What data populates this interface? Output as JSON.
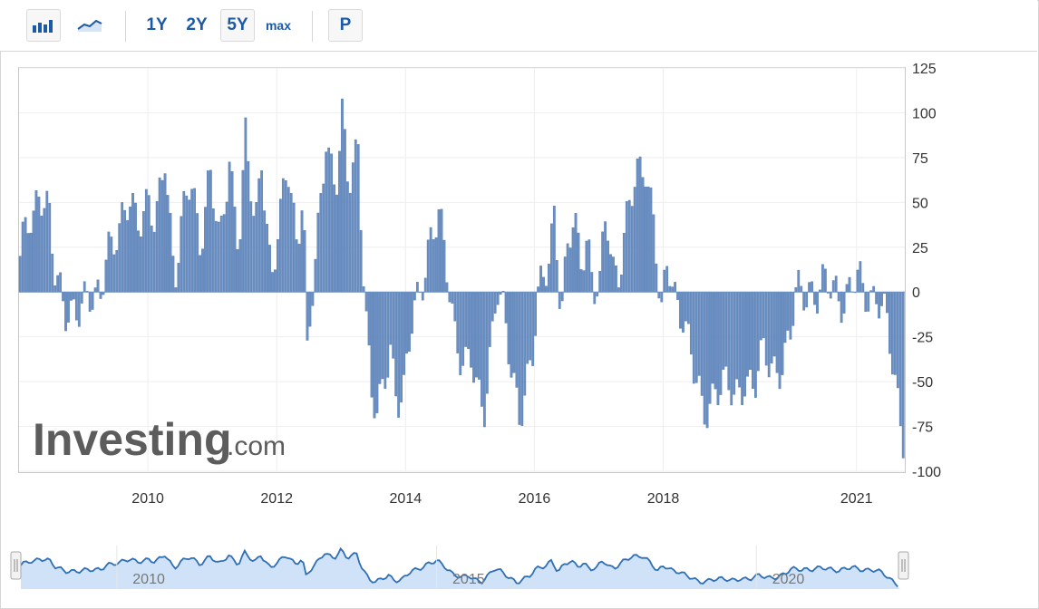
{
  "toolbar": {
    "bar_chart_icon": "bar-chart-icon",
    "line_chart_icon": "line-chart-icon",
    "range_1y": "1Y",
    "range_2y": "2Y",
    "range_5y": "5Y",
    "range_max": "max",
    "p_label": "P"
  },
  "watermark": {
    "brand": "Investing",
    "suffix": ".com"
  },
  "colors": {
    "bar": "#6a8fc3",
    "bar_stroke": "#4f75ad",
    "accent": "#1d5aa5",
    "navigator_fill": "#cfe2f7",
    "navigator_line": "#2f6fb3"
  },
  "navigator": {
    "labels": [
      "2010",
      "2015",
      "2020"
    ]
  },
  "chart_data": {
    "type": "bar",
    "title": "",
    "xlabel": "",
    "ylabel": "",
    "ylim": [
      -100,
      125
    ],
    "y_ticks": [
      125,
      100,
      75,
      50,
      25,
      0,
      -25,
      -50,
      -75,
      -100
    ],
    "y_tick_labels": [
      "125",
      "100",
      "75",
      "50",
      "25",
      "0",
      "-25",
      "-50",
      "-75",
      "-100"
    ],
    "x_range": [
      2008.0,
      2021.75
    ],
    "x_ticks": [
      "2010",
      "2012",
      "2014",
      "2016",
      "2018",
      "2021"
    ],
    "x_tick_values": [
      2010,
      2012,
      2014,
      2016,
      2018,
      2021
    ],
    "grid": true,
    "legend": "none",
    "series": [
      {
        "keypoints": [
          [
            2008.0,
            20
          ],
          [
            2008.1,
            35
          ],
          [
            2008.2,
            35
          ],
          [
            2008.3,
            60
          ],
          [
            2008.45,
            50
          ],
          [
            2008.55,
            5
          ],
          [
            2008.7,
            -15
          ],
          [
            2008.85,
            -5
          ],
          [
            2009.0,
            -5
          ],
          [
            2009.15,
            -10
          ],
          [
            2009.25,
            0
          ],
          [
            2009.35,
            30
          ],
          [
            2009.55,
            30
          ],
          [
            2009.7,
            50
          ],
          [
            2009.85,
            45
          ],
          [
            2010.0,
            50
          ],
          [
            2010.1,
            30
          ],
          [
            2010.25,
            78
          ],
          [
            2010.4,
            10
          ],
          [
            2010.5,
            35
          ],
          [
            2010.65,
            60
          ],
          [
            2010.8,
            30
          ],
          [
            2010.95,
            70
          ],
          [
            2011.1,
            20
          ],
          [
            2011.25,
            75
          ],
          [
            2011.4,
            30
          ],
          [
            2011.5,
            85
          ],
          [
            2011.65,
            30
          ],
          [
            2011.75,
            78
          ],
          [
            2011.9,
            10
          ],
          [
            2012.05,
            40
          ],
          [
            2012.15,
            70
          ],
          [
            2012.3,
            30
          ],
          [
            2012.4,
            65
          ],
          [
            2012.45,
            -40
          ],
          [
            2012.55,
            0
          ],
          [
            2012.65,
            40
          ],
          [
            2012.75,
            90
          ],
          [
            2012.9,
            60
          ],
          [
            2013.0,
            95
          ],
          [
            2013.1,
            55
          ],
          [
            2013.25,
            85
          ],
          [
            2013.35,
            0
          ],
          [
            2013.45,
            -55
          ],
          [
            2013.55,
            -75
          ],
          [
            2013.65,
            -50
          ],
          [
            2013.75,
            -30
          ],
          [
            2013.85,
            -55
          ],
          [
            2013.95,
            -60
          ],
          [
            2014.1,
            -15
          ],
          [
            2014.2,
            0
          ],
          [
            2014.35,
            30
          ],
          [
            2014.5,
            40
          ],
          [
            2014.65,
            5
          ],
          [
            2014.75,
            -20
          ],
          [
            2014.9,
            -40
          ],
          [
            2015.0,
            -40
          ],
          [
            2015.1,
            -60
          ],
          [
            2015.2,
            -65
          ],
          [
            2015.3,
            -30
          ],
          [
            2015.4,
            5
          ],
          [
            2015.5,
            -15
          ],
          [
            2015.6,
            -40
          ],
          [
            2015.75,
            -65
          ],
          [
            2015.85,
            -50
          ],
          [
            2015.95,
            -40
          ],
          [
            2016.05,
            -5
          ],
          [
            2016.2,
            20
          ],
          [
            2016.3,
            50
          ],
          [
            2016.4,
            -15
          ],
          [
            2016.5,
            20
          ],
          [
            2016.6,
            40
          ],
          [
            2016.7,
            20
          ],
          [
            2016.8,
            35
          ],
          [
            2016.9,
            0
          ],
          [
            2017.0,
            0
          ],
          [
            2017.1,
            45
          ],
          [
            2017.2,
            15
          ],
          [
            2017.3,
            15
          ],
          [
            2017.45,
            45
          ],
          [
            2017.6,
            65
          ],
          [
            2017.7,
            75
          ],
          [
            2017.85,
            40
          ],
          [
            2017.95,
            -20
          ],
          [
            2018.05,
            15
          ],
          [
            2018.15,
            0
          ],
          [
            2018.3,
            -10
          ],
          [
            2018.45,
            -45
          ],
          [
            2018.6,
            -70
          ],
          [
            2018.8,
            -50
          ],
          [
            2018.95,
            -55
          ],
          [
            2019.1,
            -60
          ],
          [
            2019.25,
            -45
          ],
          [
            2019.4,
            -55
          ],
          [
            2019.55,
            -35
          ],
          [
            2019.7,
            -40
          ],
          [
            2019.85,
            -40
          ],
          [
            2019.95,
            -30
          ],
          [
            2020.05,
            0
          ],
          [
            2020.25,
            5
          ],
          [
            2020.35,
            -5
          ],
          [
            2020.5,
            2
          ],
          [
            2020.65,
            5
          ],
          [
            2020.8,
            -5
          ],
          [
            2021.0,
            5
          ],
          [
            2021.15,
            0
          ],
          [
            2021.3,
            0
          ],
          [
            2021.45,
            -20
          ],
          [
            2021.6,
            -55
          ],
          [
            2021.7,
            -75
          ],
          [
            2021.75,
            -85
          ]
        ]
      }
    ]
  }
}
